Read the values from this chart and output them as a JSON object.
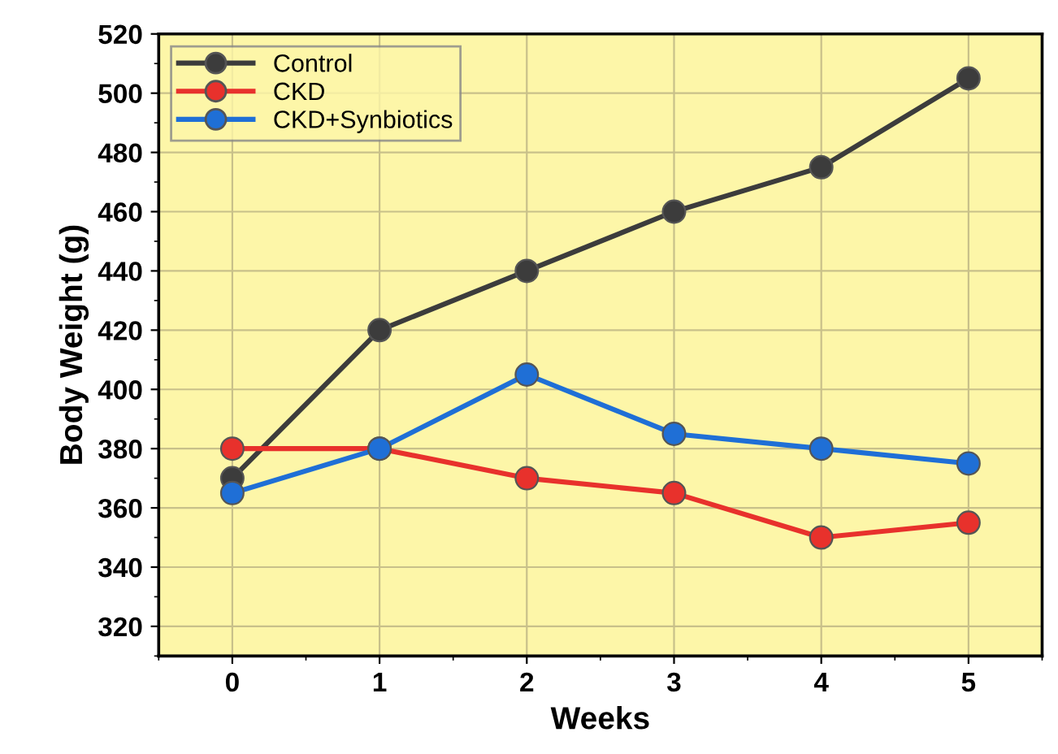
{
  "chart_data": {
    "type": "line",
    "xlabel": "Weeks",
    "ylabel": "Body Weight (g)",
    "x": [
      0,
      1,
      2,
      3,
      4,
      5
    ],
    "series": [
      {
        "name": "Control",
        "color": "#3c3c3c",
        "values": [
          370,
          420,
          440,
          460,
          475,
          505
        ]
      },
      {
        "name": "CKD",
        "color": "#e8312c",
        "values": [
          380,
          380,
          370,
          365,
          350,
          355
        ]
      },
      {
        "name": "CKD+Synbiotics",
        "color": "#1f6fd6",
        "values": [
          365,
          380,
          405,
          385,
          380,
          375
        ]
      }
    ],
    "xlim": [
      -0.5,
      5.5
    ],
    "xticks": [
      0,
      1,
      2,
      3,
      4,
      5
    ],
    "ylim": [
      310,
      520
    ],
    "yticks": [
      320,
      340,
      360,
      380,
      400,
      420,
      440,
      460,
      480,
      500,
      520
    ],
    "grid": true,
    "legend": "top left",
    "marker": "circle",
    "line_style": "solid"
  }
}
